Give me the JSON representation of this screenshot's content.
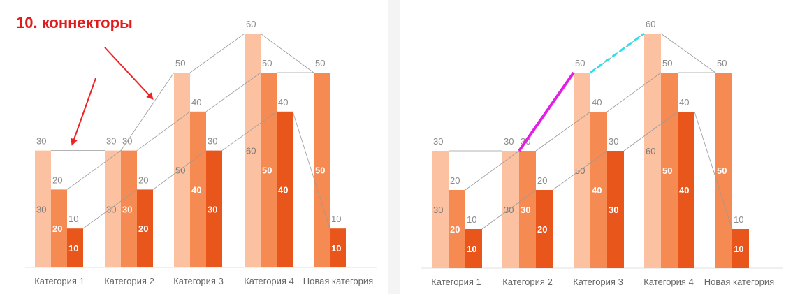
{
  "heading": "10. коннекторы",
  "colors": {
    "series1": "#fcc1a0",
    "series2": "#f58a52",
    "series3": "#e8561c",
    "connector": "#9a9a9a",
    "arrow": "#ee2222",
    "highlight_solid": "#e31fe3",
    "highlight_dashed": "#2fe0e8"
  },
  "chart_data": [
    {
      "type": "bar",
      "categories": [
        "Категория 1",
        "Категория 2",
        "Категория 3",
        "Категория 4",
        "Новая категория"
      ],
      "series": [
        {
          "values": [
            30,
            30,
            50,
            60,
            null
          ]
        },
        {
          "values": [
            20,
            30,
            40,
            50,
            50
          ]
        },
        {
          "values": [
            10,
            20,
            30,
            40,
            10
          ]
        }
      ],
      "ylim": [
        0,
        60
      ],
      "grid": false,
      "connectors": true,
      "annotations": [
        "two red arrows pointing at connector lines"
      ]
    },
    {
      "type": "bar",
      "categories": [
        "Категория 1",
        "Категория 2",
        "Категория 3",
        "Категория 4",
        "Новая категория"
      ],
      "series": [
        {
          "values": [
            30,
            30,
            50,
            60,
            null
          ]
        },
        {
          "values": [
            20,
            30,
            40,
            50,
            50
          ]
        },
        {
          "values": [
            10,
            20,
            30,
            40,
            10
          ]
        }
      ],
      "ylim": [
        0,
        60
      ],
      "grid": false,
      "connectors": true,
      "annotations": [
        "magenta connector segment Категория 2 → Категория 3",
        "cyan dashed connector segment Категория 3 → Категория 4"
      ]
    }
  ]
}
